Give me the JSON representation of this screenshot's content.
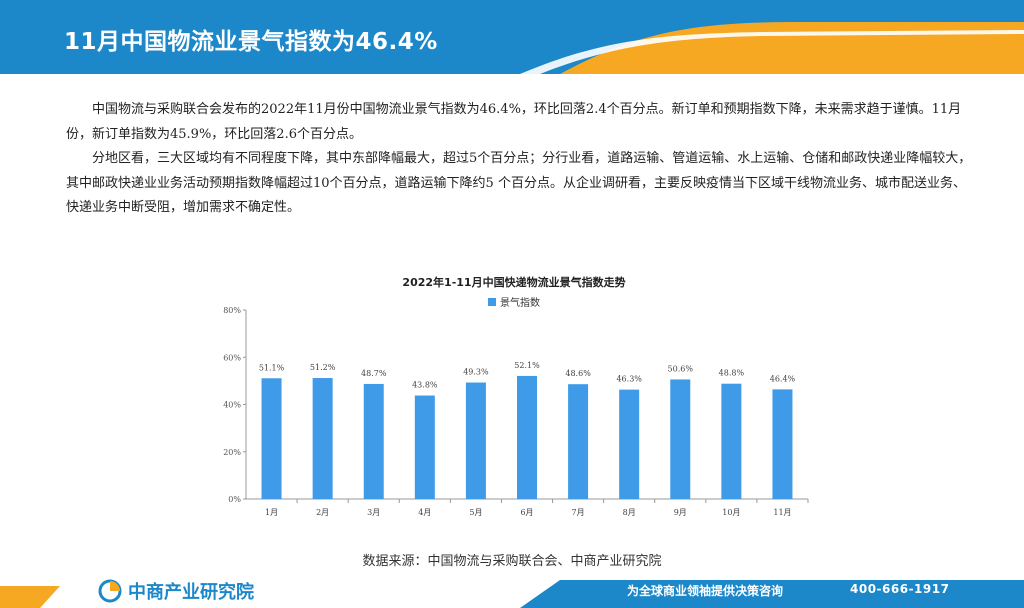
{
  "header": {
    "title": "11月中国物流业景气指数为46.4%"
  },
  "body": {
    "paragraphs": [
      "中国物流与采购联合会发布的2022年11月份中国物流业景气指数为46.4%，环比回落2.4个百分点。新订单和预期指数下降，未来需求趋于谨慎。11月份，新订单指数为45.9%，环比回落2.6个百分点。",
      "分地区看，三大区域均有不同程度下降，其中东部降幅最大，超过5个百分点；分行业看，道路运输、管道运输、水上运输、仓储和邮政快递业降幅较大，其中邮政快递业业务活动预期指数降幅超过10个百分点，道路运输下降约5 个百分点。从企业调研看，主要反映疫情当下区域干线物流业务、城市配送业务、快递业务中断受阻，增加需求不确定性。"
    ]
  },
  "chart_data": {
    "type": "bar",
    "title": "2022年1-11月中国快递物流业景气指数走势",
    "categories": [
      "1月",
      "2月",
      "3月",
      "4月",
      "5月",
      "6月",
      "7月",
      "8月",
      "9月",
      "10月",
      "11月"
    ],
    "series": [
      {
        "name": "景气指数",
        "values": [
          51.1,
          51.2,
          48.7,
          43.8,
          49.3,
          52.1,
          48.6,
          46.3,
          50.6,
          48.8,
          46.4
        ]
      }
    ],
    "value_labels": [
      "51.1%",
      "51.2%",
      "48.7%",
      "43.8%",
      "49.3%",
      "52.1%",
      "48.6%",
      "46.3%",
      "50.6%",
      "48.8%",
      "46.4%"
    ],
    "yticks": [
      "0%",
      "20%",
      "40%",
      "60%",
      "80%"
    ],
    "ylim": [
      0,
      80
    ],
    "legend": "top",
    "grid": false,
    "bar_color": "#3f9be8"
  },
  "source": {
    "text": "数据来源：中国物流与采购联合会、中商产业研究院"
  },
  "footer": {
    "logo_text": "中商产业研究院",
    "slogan": "为全球商业领袖提供决策咨询",
    "phone": "400-666-1917"
  },
  "colors": {
    "header_blue": "#1c87c9",
    "accent_orange": "#f7a823",
    "bar_blue": "#3f9be8"
  }
}
